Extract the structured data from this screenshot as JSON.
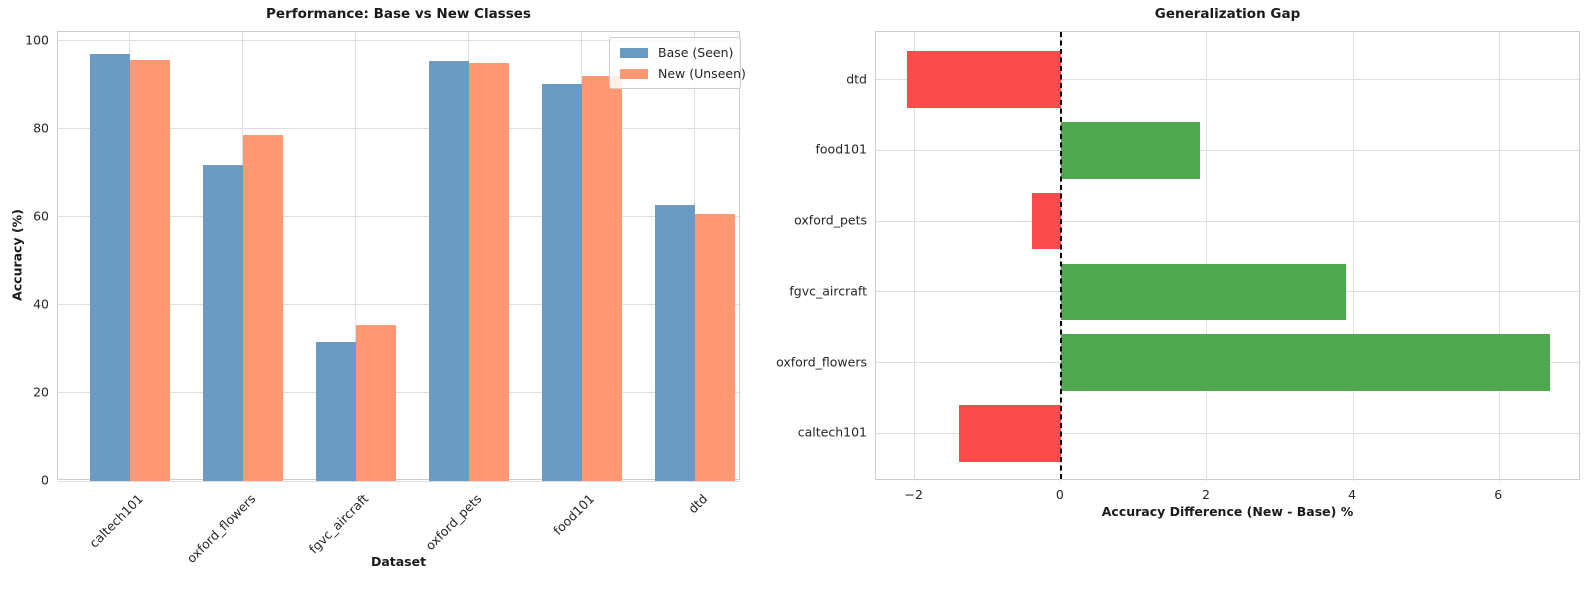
{
  "chart_data": [
    {
      "id": "performance",
      "type": "bar",
      "title": "Performance: Base vs New Classes",
      "xlabel": "Dataset",
      "ylabel": "Accuracy (%)",
      "categories": [
        "caltech101",
        "oxford_flowers",
        "fgvc_aircraft",
        "oxford_pets",
        "food101",
        "dtd"
      ],
      "series": [
        {
          "name": "Base (Seen)",
          "color": "#6B9BC3",
          "values": [
            97.0,
            71.8,
            31.6,
            95.3,
            90.2,
            62.7
          ]
        },
        {
          "name": "New (Unseen)",
          "color": "#FF9873",
          "values": [
            95.6,
            78.5,
            35.5,
            94.9,
            92.1,
            60.6
          ]
        }
      ],
      "ylim": [
        0,
        102
      ],
      "yticks": [
        0,
        20,
        40,
        60,
        80,
        100
      ],
      "ytick_labels": [
        "0",
        "20",
        "40",
        "60",
        "80",
        "100"
      ],
      "grid": true,
      "legend_position": "upper right",
      "xtick_rotation_deg": 45
    },
    {
      "id": "generalization-gap",
      "type": "bar",
      "orientation": "horizontal",
      "title": "Generalization Gap",
      "xlabel": "Accuracy Difference (New - Base) %",
      "categories_top_to_bottom": [
        "dtd",
        "food101",
        "oxford_pets",
        "fgvc_aircraft",
        "oxford_flowers",
        "caltech101"
      ],
      "values_top_to_bottom": [
        -2.1,
        1.9,
        -0.4,
        3.9,
        6.7,
        -1.4
      ],
      "positive_color": "#4FA84F",
      "negative_color": "#FC4B4B",
      "xlim": [
        -2.53,
        7.12
      ],
      "xticks": [
        -2,
        0,
        2,
        4,
        6
      ],
      "xtick_labels": [
        "−2",
        "0",
        "2",
        "4",
        "6"
      ],
      "zero_line_style": "dashed",
      "zero_line_color": "#000000",
      "grid": true
    }
  ],
  "style": {
    "background": "#ffffff",
    "gridline_color": "#dedede",
    "axes_border_color": "#cccccc",
    "text_color": "#262626"
  }
}
